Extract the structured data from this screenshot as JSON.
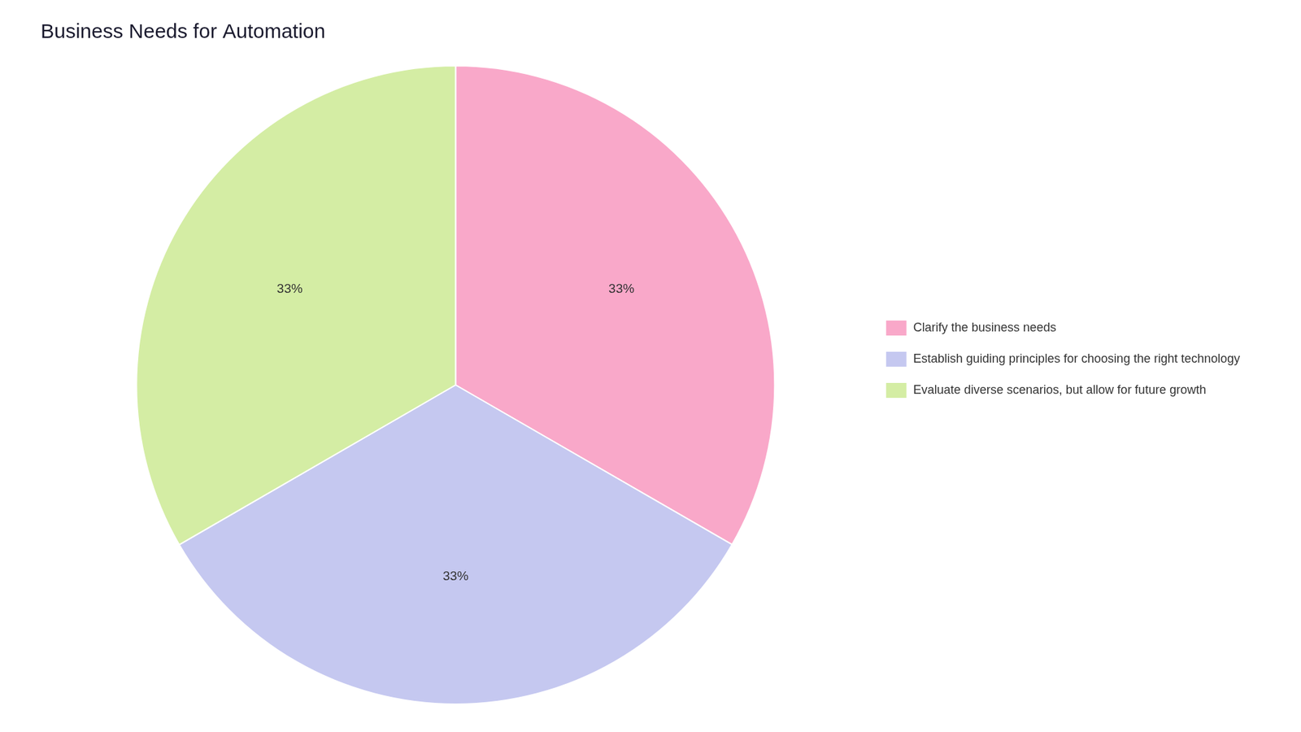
{
  "chart_data": {
    "type": "pie",
    "title": "Business Needs for Automation",
    "categories": [
      "Clarify the business needs",
      "Establish guiding principles for choosing the right technology",
      "Evaluate diverse scenarios, but allow for future growth"
    ],
    "values": [
      33.33,
      33.33,
      33.34
    ],
    "value_labels": [
      "33%",
      "33%",
      "33%"
    ],
    "colors": [
      "#F9A8C9",
      "#C5C8F0",
      "#D4EDA4"
    ],
    "legend": "right",
    "data_labels": true
  }
}
